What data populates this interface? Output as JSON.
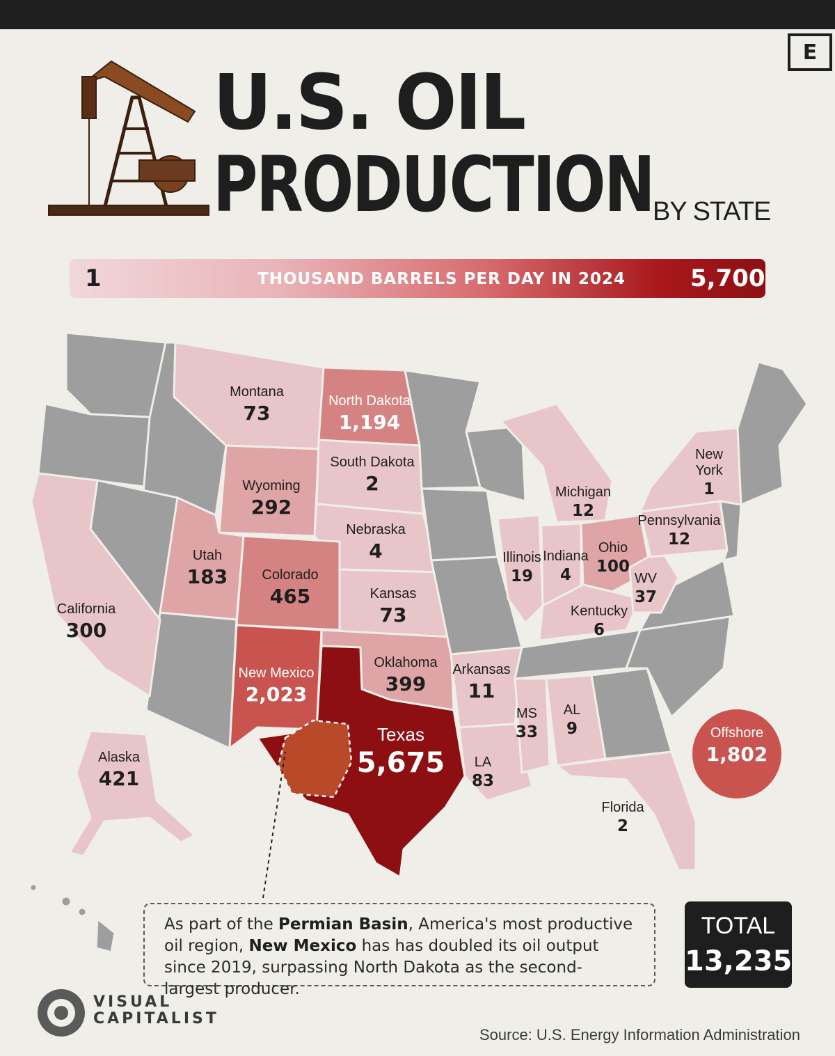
{
  "header": {
    "logo_letter": "E",
    "title_line1": "U.S. OIL",
    "title_line2": "PRODUCTION",
    "subtitle": "BY STATE"
  },
  "legend": {
    "min": "1",
    "label": "THOUSAND BARRELS PER DAY IN 2024",
    "max": "5,700",
    "colors": [
      "#f1d7da",
      "#e9b4b9",
      "#d76a6d",
      "#a8181c",
      "#8e0f12"
    ]
  },
  "colors": {
    "no_data": "#9e9e9e",
    "tier1": "#e8c5c8",
    "tier2": "#dfa5a6",
    "tier3": "#d48382",
    "tier4": "#c9534f",
    "tier5": "#8e0f12"
  },
  "states": [
    {
      "name": "Montana",
      "value": "73"
    },
    {
      "name": "North Dakota",
      "value": "1,194"
    },
    {
      "name": "South Dakota",
      "value": "2"
    },
    {
      "name": "Wyoming",
      "value": "292"
    },
    {
      "name": "Nebraska",
      "value": "4"
    },
    {
      "name": "Utah",
      "value": "183"
    },
    {
      "name": "Colorado",
      "value": "465"
    },
    {
      "name": "Kansas",
      "value": "73"
    },
    {
      "name": "California",
      "value": "300"
    },
    {
      "name": "New Mexico",
      "value": "2,023"
    },
    {
      "name": "Oklahoma",
      "value": "399"
    },
    {
      "name": "Arkansas",
      "value": "11"
    },
    {
      "name": "Texas",
      "value": "5,675"
    },
    {
      "name": "LA",
      "value": "83"
    },
    {
      "name": "MS",
      "value": "33"
    },
    {
      "name": "AL",
      "value": "9"
    },
    {
      "name": "Alaska",
      "value": "421"
    },
    {
      "name": "Michigan",
      "value": "12"
    },
    {
      "name": "Illinois",
      "value": "19"
    },
    {
      "name": "Indiana",
      "value": "4"
    },
    {
      "name": "Ohio",
      "value": "100"
    },
    {
      "name": "Pennsylvania",
      "value": "12"
    },
    {
      "name": "New York",
      "value": "1"
    },
    {
      "name": "WV",
      "value": "37"
    },
    {
      "name": "Kentucky",
      "value": "6"
    },
    {
      "name": "Florida",
      "value": "2"
    }
  ],
  "offshore": {
    "name": "Offshore",
    "value": "1,802"
  },
  "note": {
    "part1": "As part of the ",
    "bold1": "Permian Basin",
    "part2": ", America's most productive oil region, ",
    "bold2": "New Mexico",
    "part3": " has has doubled its oil output since 2019, surpassing North Dakota as the second-largest producer."
  },
  "total": {
    "label": "TOTAL",
    "value": "13,235"
  },
  "footer": {
    "brand_line1": "VISUAL",
    "brand_line2": "CAPITALIST",
    "source": "Source: U.S. Energy Information Administration"
  }
}
